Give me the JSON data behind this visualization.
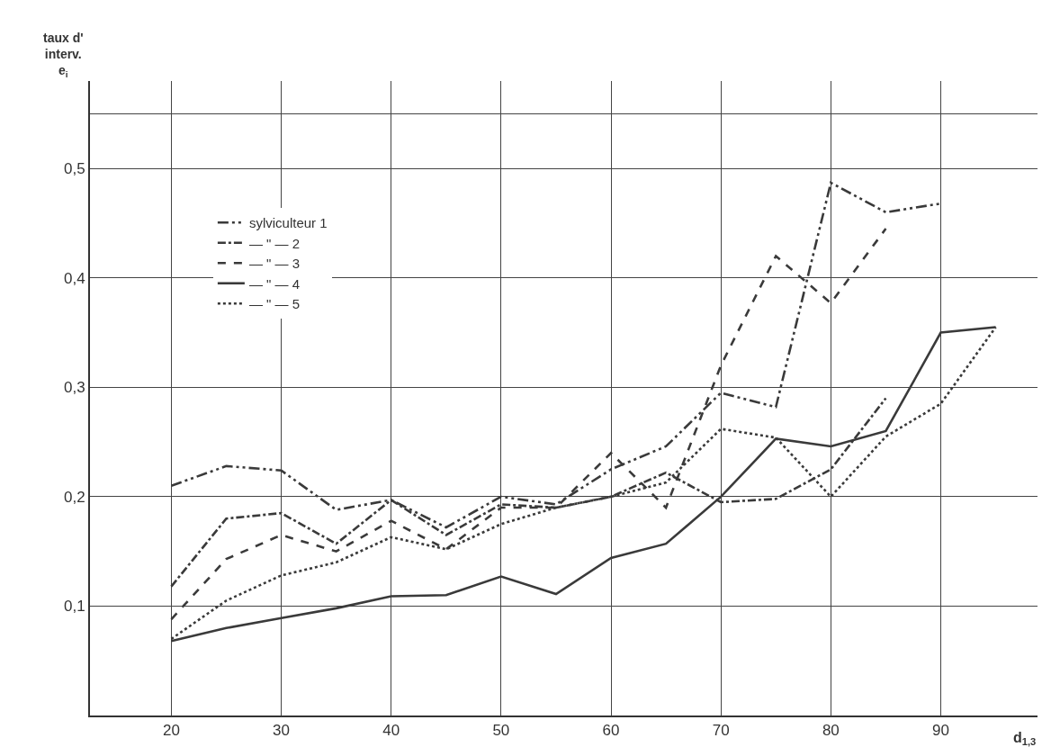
{
  "chart_data": {
    "type": "line",
    "ylabel": "taux d'\ninterv.\ne$_{i}$",
    "xlabel": "d$_{1,3}$",
    "xlim": [
      12.6,
      98.8
    ],
    "xticks": [
      20,
      30,
      40,
      50,
      60,
      70,
      80,
      90
    ],
    "ylim": [
      0,
      0.58
    ],
    "yticks": [
      {
        "value": 0.1,
        "label": "0,1"
      },
      {
        "value": 0.2,
        "label": "0,2"
      },
      {
        "value": 0.3,
        "label": "0,3"
      },
      {
        "value": 0.4,
        "label": "0,4"
      },
      {
        "value": 0.5,
        "label": "0,5"
      },
      {
        "value": 0.55,
        "label": null
      }
    ],
    "grid": true,
    "legend": "top left",
    "marker": "none",
    "series": [
      {
        "name": "sylviculteur 1",
        "color": "#3a3a3a",
        "line_style": "dashdotdot",
        "x": [
          20,
          25,
          30,
          35,
          40,
          45,
          50,
          55,
          60,
          65,
          70,
          75,
          80,
          85,
          90
        ],
        "values": [
          0.21,
          0.228,
          0.224,
          0.188,
          0.197,
          0.172,
          0.2,
          0.193,
          0.225,
          0.246,
          0.295,
          0.282,
          0.487,
          0.46,
          0.468
        ]
      },
      {
        "name": "— \" — 2",
        "color": "#3a3a3a",
        "line_style": "dashdot",
        "x": [
          20,
          25,
          30,
          35,
          40,
          45,
          50,
          55,
          60,
          65,
          70,
          75,
          80,
          85
        ],
        "values": [
          0.118,
          0.18,
          0.185,
          0.157,
          0.197,
          0.165,
          0.193,
          0.19,
          0.2,
          0.222,
          0.195,
          0.198,
          0.225,
          0.29
        ]
      },
      {
        "name": "— \" — 3",
        "color": "#3a3a3a",
        "line_style": "dashed",
        "x": [
          20,
          25,
          30,
          35,
          40,
          45,
          50,
          55,
          60,
          65,
          70,
          75,
          80,
          85
        ],
        "values": [
          0.088,
          0.143,
          0.165,
          0.15,
          0.178,
          0.152,
          0.19,
          0.19,
          0.24,
          0.19,
          0.32,
          0.42,
          0.377,
          0.445
        ]
      },
      {
        "name": "— \" — 4",
        "color": "#3a3a3a",
        "line_style": "solid",
        "x": [
          20,
          25,
          30,
          35,
          40,
          45,
          50,
          55,
          60,
          65,
          70,
          75,
          80,
          85,
          90,
          95
        ],
        "values": [
          0.068,
          0.08,
          0.089,
          0.098,
          0.109,
          0.11,
          0.127,
          0.111,
          0.144,
          0.157,
          0.2,
          0.253,
          0.246,
          0.26,
          0.35,
          0.355
        ]
      },
      {
        "name": "— \" — 5",
        "color": "#3a3a3a",
        "line_style": "dotted",
        "x": [
          20,
          25,
          30,
          35,
          40,
          45,
          50,
          55,
          60,
          65,
          70,
          75,
          80,
          85,
          90,
          95
        ],
        "values": [
          0.07,
          0.105,
          0.128,
          0.14,
          0.163,
          0.152,
          0.175,
          0.19,
          0.2,
          0.213,
          0.262,
          0.254,
          0.2,
          0.255,
          0.285,
          0.355
        ]
      }
    ]
  }
}
